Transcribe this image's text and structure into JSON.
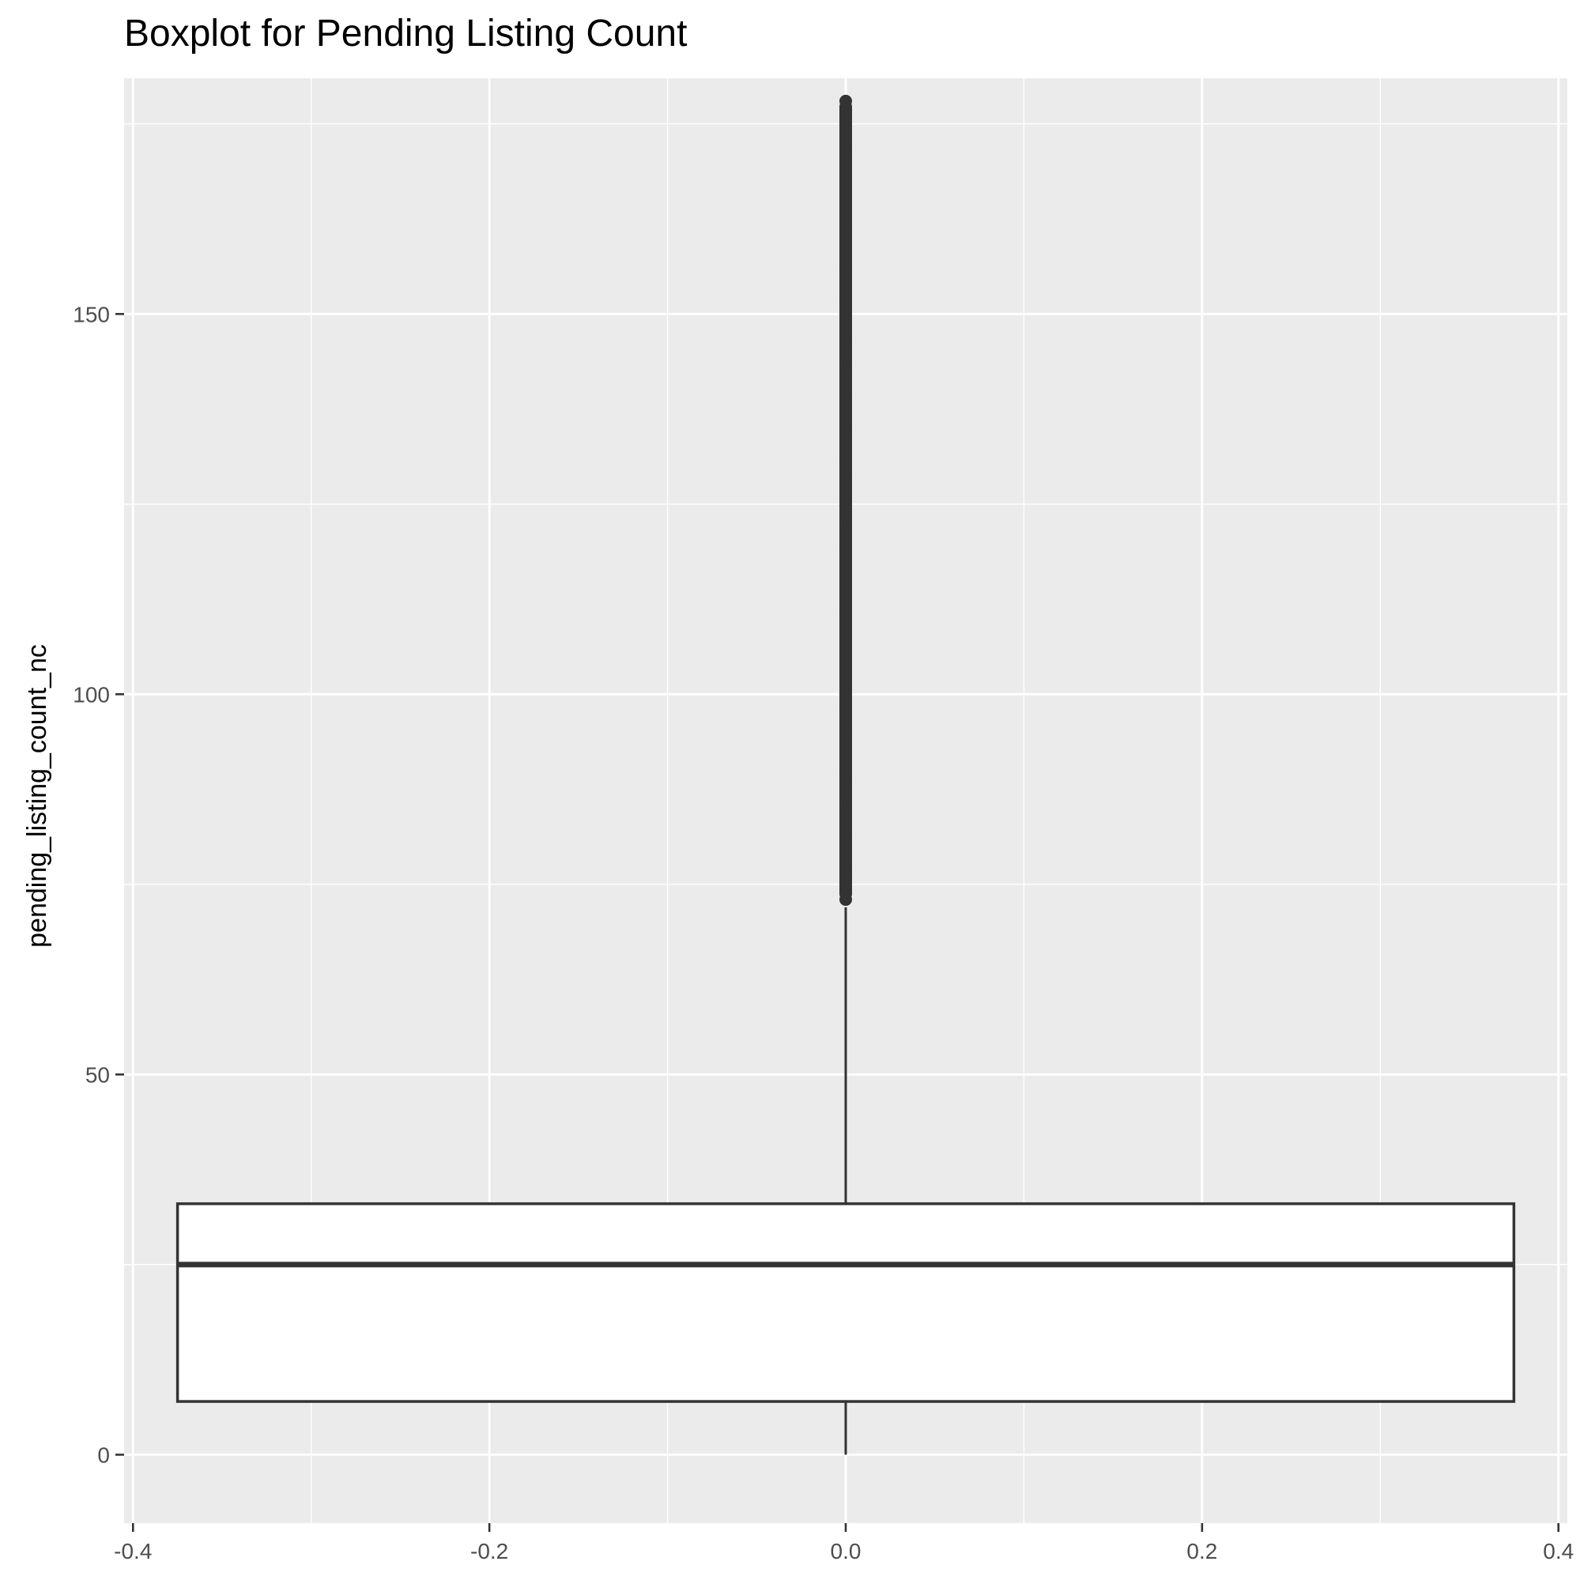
{
  "chart_data": {
    "type": "boxplot",
    "title": "Boxplot for Pending Listing Count",
    "xlabel": "",
    "ylabel": "pending_listing_count_nc",
    "xlim": [
      -0.405,
      0.405
    ],
    "ylim": [
      -9,
      181
    ],
    "x_ticks": [
      -0.4,
      -0.2,
      0.0,
      0.2,
      0.4
    ],
    "x_tick_labels": [
      "-0.4",
      "-0.2",
      "0.0",
      "0.2",
      "0.4"
    ],
    "x_minor_gridlines": [
      -0.3,
      -0.1,
      0.1,
      0.3
    ],
    "y_ticks": [
      0,
      50,
      100,
      150
    ],
    "y_tick_labels": [
      "0",
      "50",
      "100",
      "150"
    ],
    "y_minor_gridlines": [
      25,
      75,
      125,
      175
    ],
    "grid": true,
    "colors": {
      "panel_background": "#EBEBEB",
      "grid": "#FFFFFF",
      "box_fill": "#FFFFFF",
      "box_stroke": "#333333",
      "outlier": "#333333",
      "tick_label": "#4D4D4D",
      "title": "#000000"
    },
    "box": {
      "x_center": 0.0,
      "x_left": -0.375,
      "x_right": 0.375,
      "lower_whisker": 0,
      "q1": 7,
      "median": 25,
      "q3": 33,
      "upper_whisker": 72,
      "outlier_min": 73,
      "outlier_max": 178
    }
  }
}
